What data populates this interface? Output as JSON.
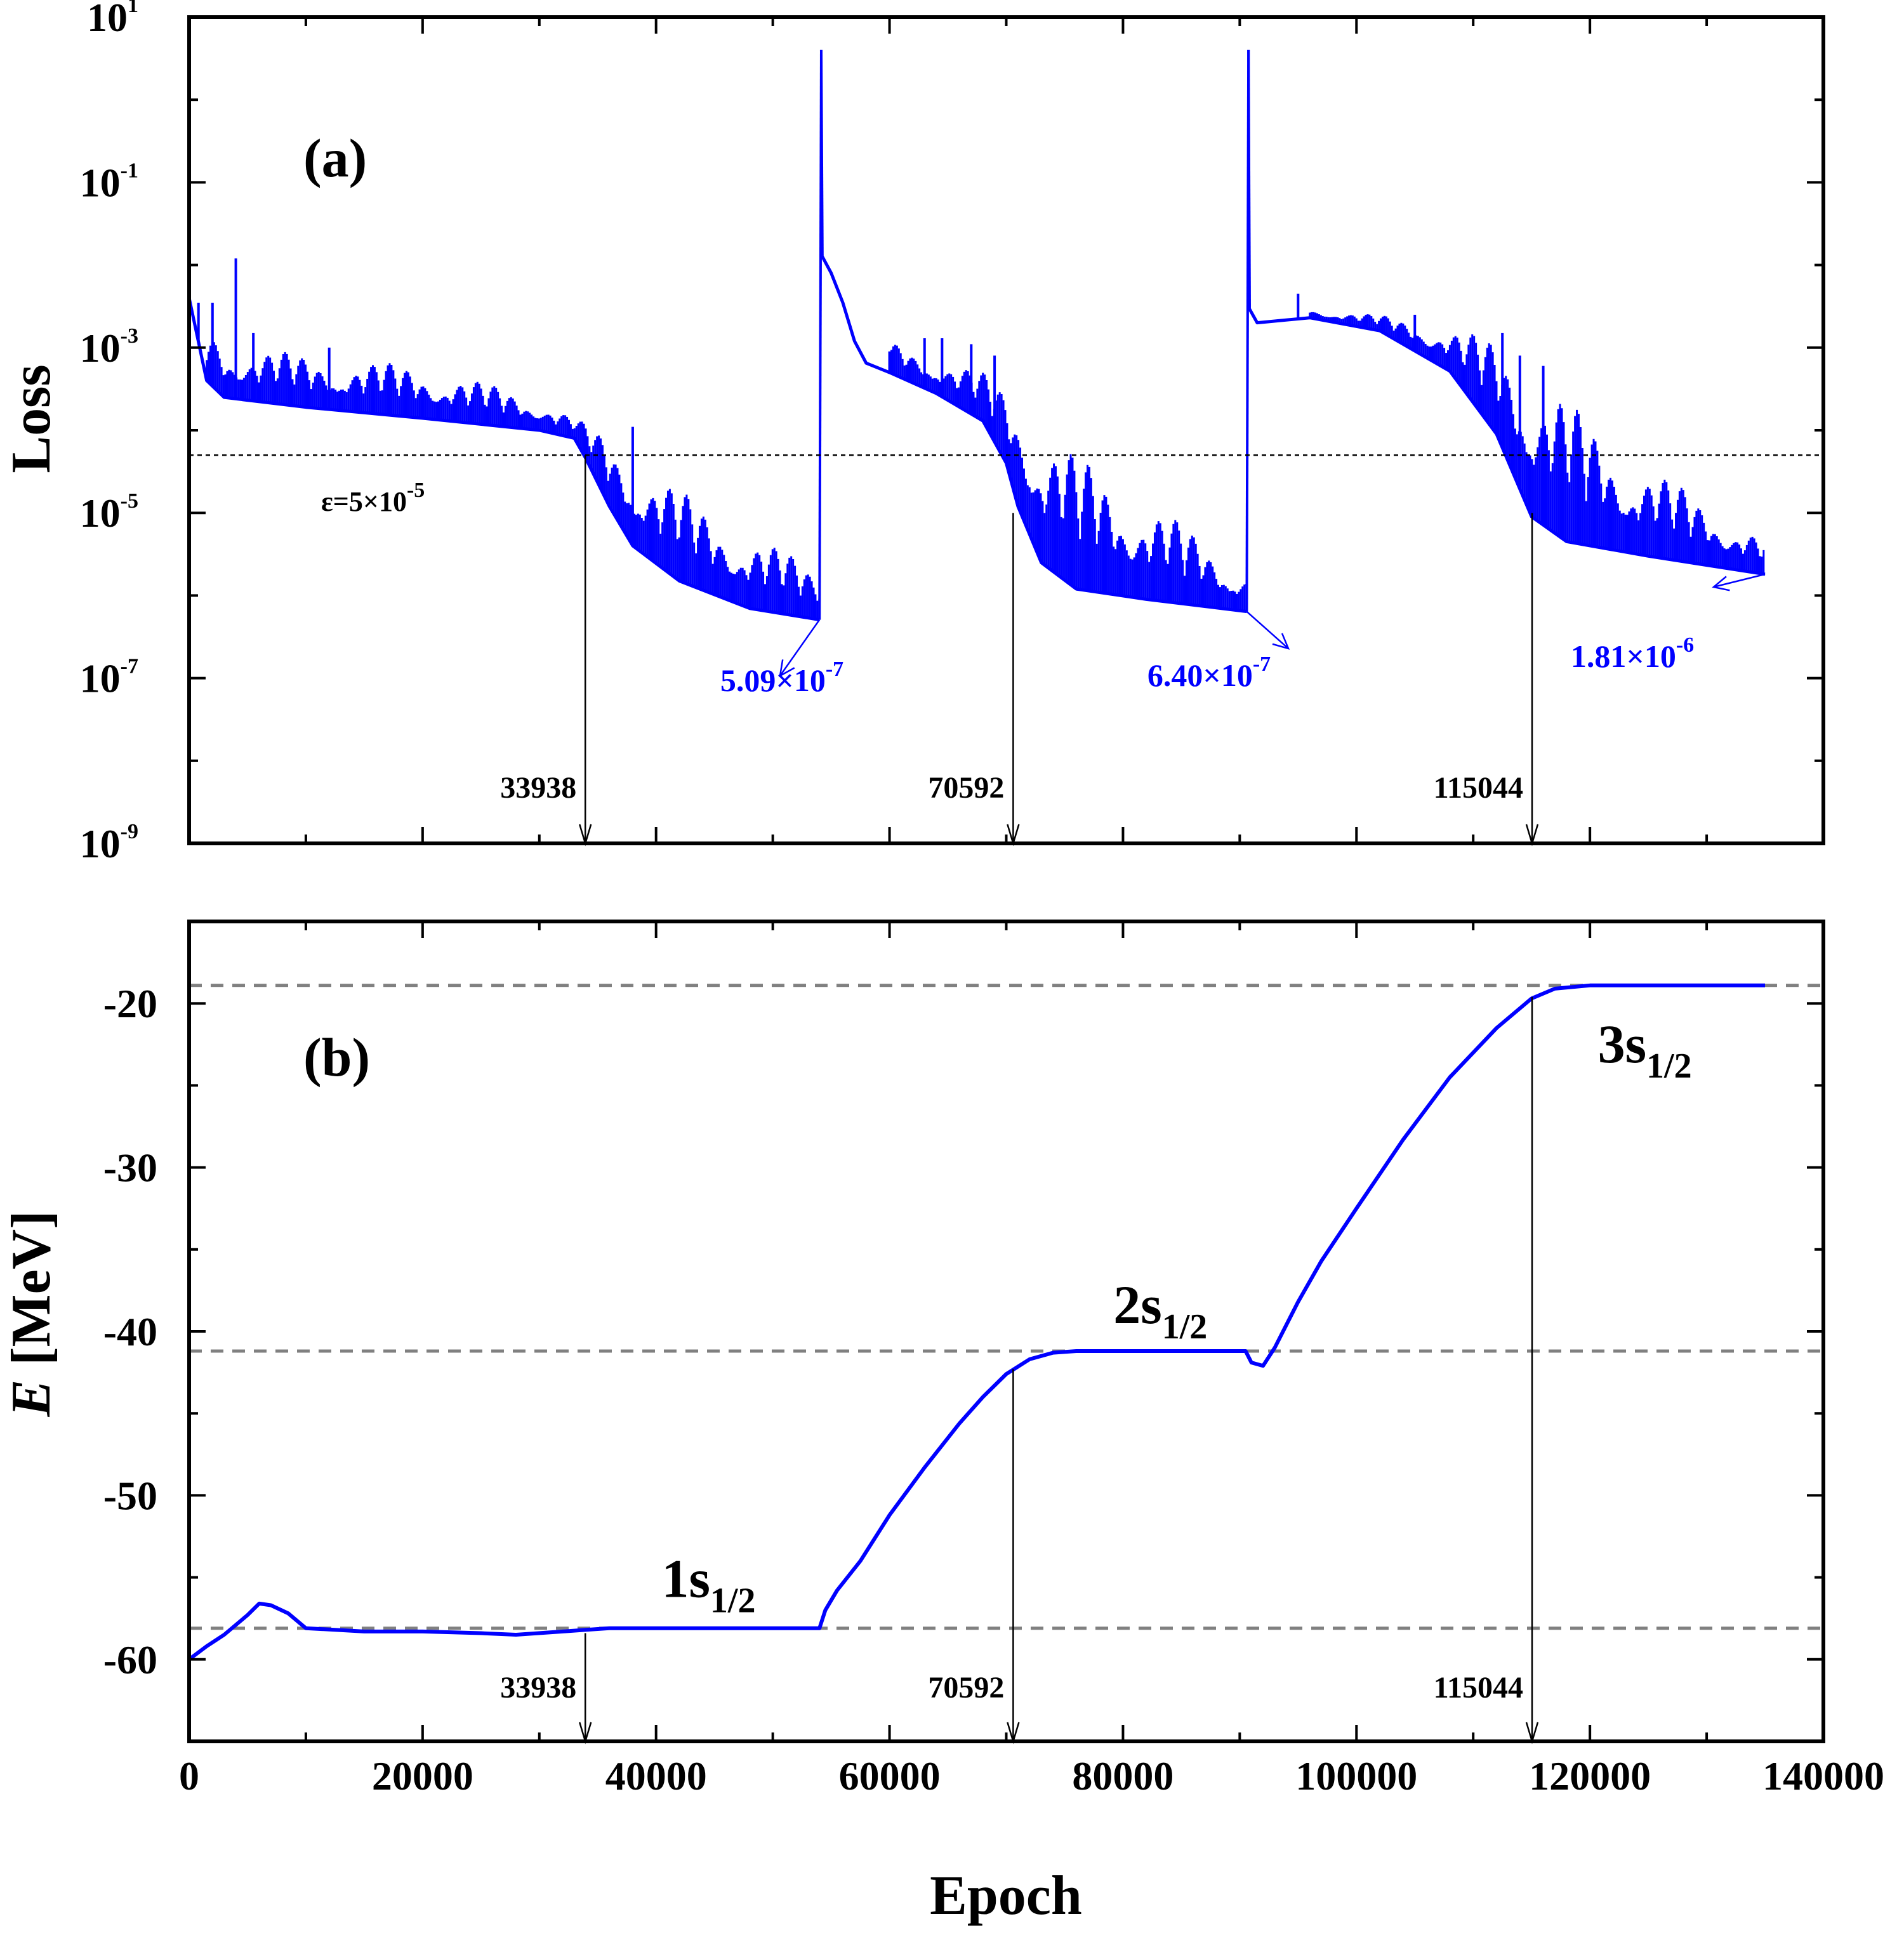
{
  "colors": {
    "series": "#0000ff",
    "axis": "#000000",
    "threshold_a": "#000000",
    "reference_b": "#808080",
    "background": "#ffffff"
  },
  "chart_data": [
    {
      "panel": "(a)",
      "type": "line",
      "ylabel": "Loss",
      "xlabel": "",
      "yscale": "log",
      "xlim": [
        0,
        140000
      ],
      "ylim": [
        1e-09,
        10
      ],
      "yticks": [
        {
          "base": "10",
          "exp": "1"
        },
        {
          "base": "10",
          "exp": "-1"
        },
        {
          "base": "10",
          "exp": "-3"
        },
        {
          "base": "10",
          "exp": "-5"
        },
        {
          "base": "10",
          "exp": "-7"
        },
        {
          "base": "10",
          "exp": "-9"
        }
      ],
      "ytick_values": [
        10,
        0.1,
        0.001,
        1e-05,
        1e-07,
        1e-09
      ],
      "grid": false,
      "threshold": {
        "value": 5e-05,
        "label_main": "ε=5×10",
        "label_exp": "-5"
      },
      "epoch_markers": [
        {
          "x": 33938,
          "label": "33938",
          "y": 5e-05
        },
        {
          "x": 70592,
          "label": "70592",
          "y": 1e-05
        },
        {
          "x": 115044,
          "label": "115044",
          "y": 1e-05
        }
      ],
      "final_losses": [
        {
          "x": 54000,
          "y": 5.09e-07,
          "mantissa": "5.09×10",
          "exp": "-7"
        },
        {
          "x": 90600,
          "y": 6.4e-07,
          "mantissa": "6.40×10",
          "exp": "-7"
        },
        {
          "x": 135000,
          "y": 1.81e-06,
          "mantissa": "1.81×10",
          "exp": "-6"
        }
      ],
      "series": [
        {
          "envelope_lower": [
            [
              0,
              0.004
            ],
            [
              1500,
              0.0004
            ],
            [
              3000,
              0.00025
            ],
            [
              10000,
              0.00019
            ],
            [
              20000,
              0.00014
            ],
            [
              30000,
              0.0001
            ],
            [
              33000,
              8e-05
            ],
            [
              34000,
              4.5e-05
            ],
            [
              36000,
              1.2e-05
            ],
            [
              38000,
              4e-06
            ],
            [
              42000,
              1.5e-06
            ],
            [
              48000,
              7e-07
            ],
            [
              54000,
              5.09e-07
            ],
            [
              54200,
              0.013
            ],
            [
              55000,
              0.008
            ],
            [
              56000,
              0.0035
            ],
            [
              57000,
              0.0012
            ],
            [
              58000,
              0.00065
            ],
            [
              60000,
              0.0005
            ],
            [
              64000,
              0.00028
            ],
            [
              68000,
              0.00013
            ],
            [
              70000,
              4e-05
            ],
            [
              71000,
              1.2e-05
            ],
            [
              73000,
              2.5e-06
            ],
            [
              76000,
              1.2e-06
            ],
            [
              82000,
              9e-07
            ],
            [
              90600,
              6.4e-07
            ],
            [
              90800,
              0.003
            ],
            [
              91500,
              0.002
            ],
            [
              96000,
              0.0023
            ],
            [
              102000,
              0.0016
            ],
            [
              108000,
              0.00052
            ],
            [
              112000,
              9e-05
            ],
            [
              115000,
              9e-06
            ],
            [
              118000,
              4.5e-06
            ],
            [
              125000,
              3e-06
            ],
            [
              135000,
              1.81e-06
            ]
          ],
          "envelope_upper": [
            [
              1500,
              0.002
            ],
            [
              3000,
              0.0012
            ],
            [
              10000,
              0.0008
            ],
            [
              20000,
              0.0006
            ],
            [
              30000,
              0.00025
            ],
            [
              34000,
              0.00012
            ],
            [
              38000,
              5e-05
            ],
            [
              44000,
              1.2e-05
            ],
            [
              54000,
              2e-06
            ],
            [
              60000,
              0.0012
            ],
            [
              64000,
              0.0008
            ],
            [
              68000,
              0.0005
            ],
            [
              72000,
              0.0002
            ],
            [
              76000,
              5e-05
            ],
            [
              82000,
              1.5e-05
            ],
            [
              90600,
              2e-06
            ],
            [
              96000,
              0.003
            ],
            [
              102000,
              0.0025
            ],
            [
              108000,
              0.0018
            ],
            [
              112000,
              0.0012
            ],
            [
              116000,
              0.0005
            ],
            [
              120000,
              0.00012
            ],
            [
              126000,
              3e-05
            ],
            [
              135000,
              5e-06
            ]
          ],
          "spikes": [
            [
              800,
              0.0035
            ],
            [
              2000,
              0.0035
            ],
            [
              4000,
              0.012
            ],
            [
              5500,
              0.0015
            ],
            [
              12000,
              0.001
            ],
            [
              38000,
              0.00011
            ],
            [
              60000,
              0.0009
            ],
            [
              63000,
              0.0013
            ],
            [
              64500,
              0.0013
            ],
            [
              67000,
              0.0011
            ],
            [
              69000,
              0.0008
            ],
            [
              95000,
              0.0045
            ],
            [
              105000,
              0.0025
            ],
            [
              112500,
              0.0015
            ],
            [
              114000,
              0.0008
            ],
            [
              116000,
              0.0006
            ]
          ]
        }
      ]
    },
    {
      "panel": "(b)",
      "type": "line",
      "xlabel": "Epoch",
      "ylabel_italic": "E",
      "ylabel_rest": " [MeV]",
      "xlim": [
        0,
        140000
      ],
      "ylim": [
        -65,
        -15
      ],
      "xticks": [
        "0",
        "20000",
        "40000",
        "60000",
        "80000",
        "100000",
        "120000",
        "140000"
      ],
      "xtick_values": [
        0,
        20000,
        40000,
        60000,
        80000,
        100000,
        120000,
        140000
      ],
      "yticks": [
        "-20",
        "-30",
        "-40",
        "-50",
        "-60"
      ],
      "ytick_values": [
        -20,
        -30,
        -40,
        -50,
        -60
      ],
      "grid": false,
      "reference_lines": [
        -58.1,
        -41.2,
        -18.9
      ],
      "states": [
        {
          "main": "1s",
          "sub": "1/2",
          "x": 44500,
          "y": -56.2
        },
        {
          "main": "2s",
          "sub": "1/2",
          "x": 83200,
          "y": -39.5
        },
        {
          "main": "3s",
          "sub": "1/2",
          "x": 124700,
          "y": -23.6
        }
      ],
      "epoch_markers": [
        {
          "x": 33938,
          "label": "33938",
          "y": -58.4
        },
        {
          "x": 70592,
          "label": "70592",
          "y": -42.3
        },
        {
          "x": 115044,
          "label": "115044",
          "y": -19.6
        }
      ],
      "series": [
        {
          "points": [
            [
              0,
              -60
            ],
            [
              1500,
              -59.2
            ],
            [
              3000,
              -58.5
            ],
            [
              5000,
              -57.3
            ],
            [
              6000,
              -56.6
            ],
            [
              7000,
              -56.7
            ],
            [
              8500,
              -57.2
            ],
            [
              10000,
              -58.1
            ],
            [
              15000,
              -58.3
            ],
            [
              20000,
              -58.3
            ],
            [
              25000,
              -58.4
            ],
            [
              28000,
              -58.5
            ],
            [
              32000,
              -58.3
            ],
            [
              34000,
              -58.2
            ],
            [
              36000,
              -58.1
            ],
            [
              40000,
              -58.1
            ],
            [
              50000,
              -58.1
            ],
            [
              54000,
              -58.1
            ],
            [
              54500,
              -57
            ],
            [
              55500,
              -55.8
            ],
            [
              57500,
              -54
            ],
            [
              60000,
              -51.2
            ],
            [
              63000,
              -48.3
            ],
            [
              66000,
              -45.6
            ],
            [
              68000,
              -44
            ],
            [
              70000,
              -42.6
            ],
            [
              72000,
              -41.7
            ],
            [
              74000,
              -41.3
            ],
            [
              76000,
              -41.2
            ],
            [
              80000,
              -41.2
            ],
            [
              85000,
              -41.2
            ],
            [
              90500,
              -41.2
            ],
            [
              91000,
              -41.9
            ],
            [
              92000,
              -42.1
            ],
            [
              93000,
              -41
            ],
            [
              95000,
              -38.2
            ],
            [
              97000,
              -35.7
            ],
            [
              100000,
              -32.5
            ],
            [
              104000,
              -28.3
            ],
            [
              108000,
              -24.5
            ],
            [
              112000,
              -21.5
            ],
            [
              115000,
              -19.7
            ],
            [
              117000,
              -19.1
            ],
            [
              120000,
              -18.9
            ],
            [
              125000,
              -18.9
            ],
            [
              135000,
              -18.9
            ]
          ]
        }
      ]
    }
  ]
}
